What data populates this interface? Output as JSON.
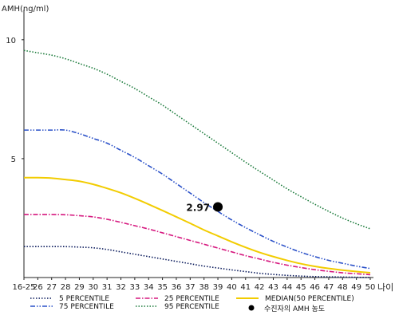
{
  "chart_data": {
    "type": "line",
    "title": "",
    "ylabel": "AMH(ng/ml)",
    "xlabel": "나이",
    "ylim": [
      0,
      11
    ],
    "y_ticks": [
      5,
      10
    ],
    "x": [
      "16-25",
      "26",
      "27",
      "28",
      "29",
      "30",
      "31",
      "32",
      "33",
      "34",
      "35",
      "36",
      "37",
      "38",
      "39",
      "40",
      "41",
      "42",
      "43",
      "44",
      "45",
      "46",
      "47",
      "48",
      "49",
      "50"
    ],
    "series": [
      {
        "name": "5 PERCENTILE",
        "color": "#0a1a5c",
        "style": "dotted",
        "values": [
          1.3,
          1.3,
          1.3,
          1.3,
          1.28,
          1.25,
          1.18,
          1.08,
          0.98,
          0.88,
          0.78,
          0.68,
          0.58,
          0.48,
          0.4,
          0.32,
          0.25,
          0.18,
          0.13,
          0.09,
          0.06,
          0.04,
          0.03,
          0.02,
          0.01,
          0.0
        ]
      },
      {
        "name": "25 PERCENTILE",
        "color": "#d6187f",
        "style": "dashdot",
        "values": [
          2.65,
          2.65,
          2.65,
          2.64,
          2.6,
          2.55,
          2.45,
          2.32,
          2.18,
          2.04,
          1.88,
          1.72,
          1.56,
          1.4,
          1.24,
          1.08,
          0.92,
          0.78,
          0.64,
          0.52,
          0.42,
          0.33,
          0.26,
          0.2,
          0.16,
          0.12
        ]
      },
      {
        "name": "MEDIAN(50 PERCENTILE)",
        "color": "#f2cc00",
        "style": "solid",
        "values": [
          4.2,
          4.2,
          4.18,
          4.12,
          4.05,
          3.92,
          3.75,
          3.56,
          3.33,
          3.08,
          2.82,
          2.55,
          2.28,
          2.0,
          1.75,
          1.5,
          1.27,
          1.06,
          0.88,
          0.72,
          0.58,
          0.47,
          0.38,
          0.31,
          0.25,
          0.2
        ]
      },
      {
        "name": "75 PERCENTILE",
        "color": "#2a50c8",
        "style": "dashdotdot",
        "values": [
          6.2,
          6.2,
          6.2,
          6.2,
          6.05,
          5.85,
          5.65,
          5.35,
          5.05,
          4.7,
          4.35,
          3.95,
          3.55,
          3.15,
          2.78,
          2.42,
          2.1,
          1.8,
          1.52,
          1.28,
          1.06,
          0.88,
          0.72,
          0.6,
          0.48,
          0.38
        ]
      },
      {
        "name": "95 PERCENTILE",
        "color": "#1a7a3a",
        "style": "dotted",
        "values": [
          9.55,
          9.45,
          9.35,
          9.2,
          9.0,
          8.8,
          8.55,
          8.25,
          7.95,
          7.6,
          7.25,
          6.85,
          6.45,
          6.05,
          5.65,
          5.25,
          4.85,
          4.47,
          4.1,
          3.73,
          3.4,
          3.08,
          2.78,
          2.5,
          2.26,
          2.05
        ]
      }
    ],
    "marker": {
      "x": "39",
      "y": 2.97,
      "label": "2.97",
      "legend": "수진자의 AMH 농도"
    },
    "legend_position": "bottom"
  }
}
